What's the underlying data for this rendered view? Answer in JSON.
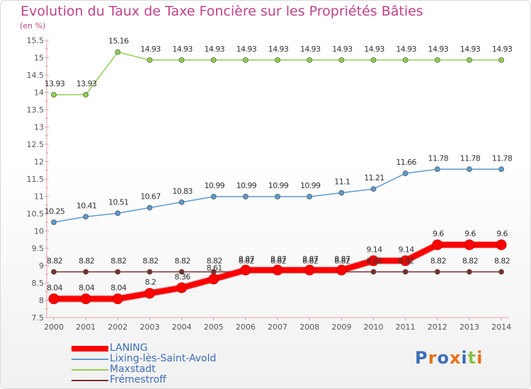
{
  "header": {
    "title": "Evolution du Taux de Taxe Foncière sur les Propriétés Bâties",
    "unit": "(en %)"
  },
  "logo": {
    "text": "Proxiti",
    "colors": [
      "#3d6eb8",
      "#e8701a",
      "#3d6eb8",
      "#e8701a",
      "#3d6eb8",
      "#8bc34a",
      "#e8701a"
    ]
  },
  "chart_data": {
    "type": "line",
    "x": [
      "2000",
      "2001",
      "2002",
      "2003",
      "2004",
      "2005",
      "2006",
      "2007",
      "2008",
      "2009",
      "2010",
      "2011",
      "2012",
      "2013",
      "2014"
    ],
    "ylim": [
      7.5,
      15.5
    ],
    "yticks": [
      "7.5",
      "8",
      "8.5",
      "9",
      "9.5",
      "10",
      "10.5",
      "11",
      "11.5",
      "12",
      "12.5",
      "13",
      "13.5",
      "14",
      "14.5",
      "15",
      "15.5"
    ],
    "grid": false,
    "legend_position": "bottom-left",
    "series": [
      {
        "name": "LANING",
        "color": "#ff0000",
        "values": [
          8.04,
          8.04,
          8.04,
          8.2,
          8.36,
          8.61,
          8.87,
          8.87,
          8.87,
          8.87,
          9.14,
          9.14,
          9.6,
          9.6,
          9.6
        ],
        "labels": [
          "8.04",
          "8.04",
          "8.04",
          "8.2",
          "8.36",
          "8.61",
          "8.87",
          "8.87",
          "8.87",
          "8.87",
          "9.14",
          "9.14",
          "9.6",
          "9.6",
          "9.6"
        ]
      },
      {
        "name": "Lixing-lès-Saint-Avold",
        "color": "#5c9bd1",
        "values": [
          10.25,
          10.41,
          10.51,
          10.67,
          10.83,
          10.99,
          10.99,
          10.99,
          10.99,
          11.1,
          11.21,
          11.66,
          11.78,
          11.78,
          11.78
        ],
        "labels": [
          "10.25",
          "10.41",
          "10.51",
          "10.67",
          "10.83",
          "10.99",
          "10.99",
          "10.99",
          "10.99",
          "11.1",
          "11.21",
          "11.66",
          "11.78",
          "11.78",
          "11.78"
        ]
      },
      {
        "name": "Maxstadt",
        "color": "#8fd14f",
        "values": [
          13.93,
          13.93,
          15.16,
          14.93,
          14.93,
          14.93,
          14.93,
          14.93,
          14.93,
          14.93,
          14.93,
          14.93,
          14.93,
          14.93,
          14.93
        ],
        "labels": [
          "13.93",
          "13.93",
          "15.16",
          "14.93",
          "14.93",
          "14.93",
          "14.93",
          "14.93",
          "14.93",
          "14.93",
          "14.93",
          "14.93",
          "14.93",
          "14.93",
          "14.93"
        ]
      },
      {
        "name": "Frémestroff",
        "color": "#7a2e2e",
        "values": [
          8.82,
          8.82,
          8.82,
          8.82,
          8.82,
          8.82,
          8.82,
          8.82,
          8.82,
          8.82,
          8.82,
          8.82,
          8.82,
          8.82,
          8.82
        ],
        "labels": [
          "8.82",
          "8.82",
          "8.82",
          "8.82",
          "8.82",
          "8.82",
          "8.82",
          "8.82",
          "8.82",
          "8.82",
          "8.82",
          "8.82",
          "8.82",
          "8.82",
          "8.82"
        ]
      }
    ]
  }
}
